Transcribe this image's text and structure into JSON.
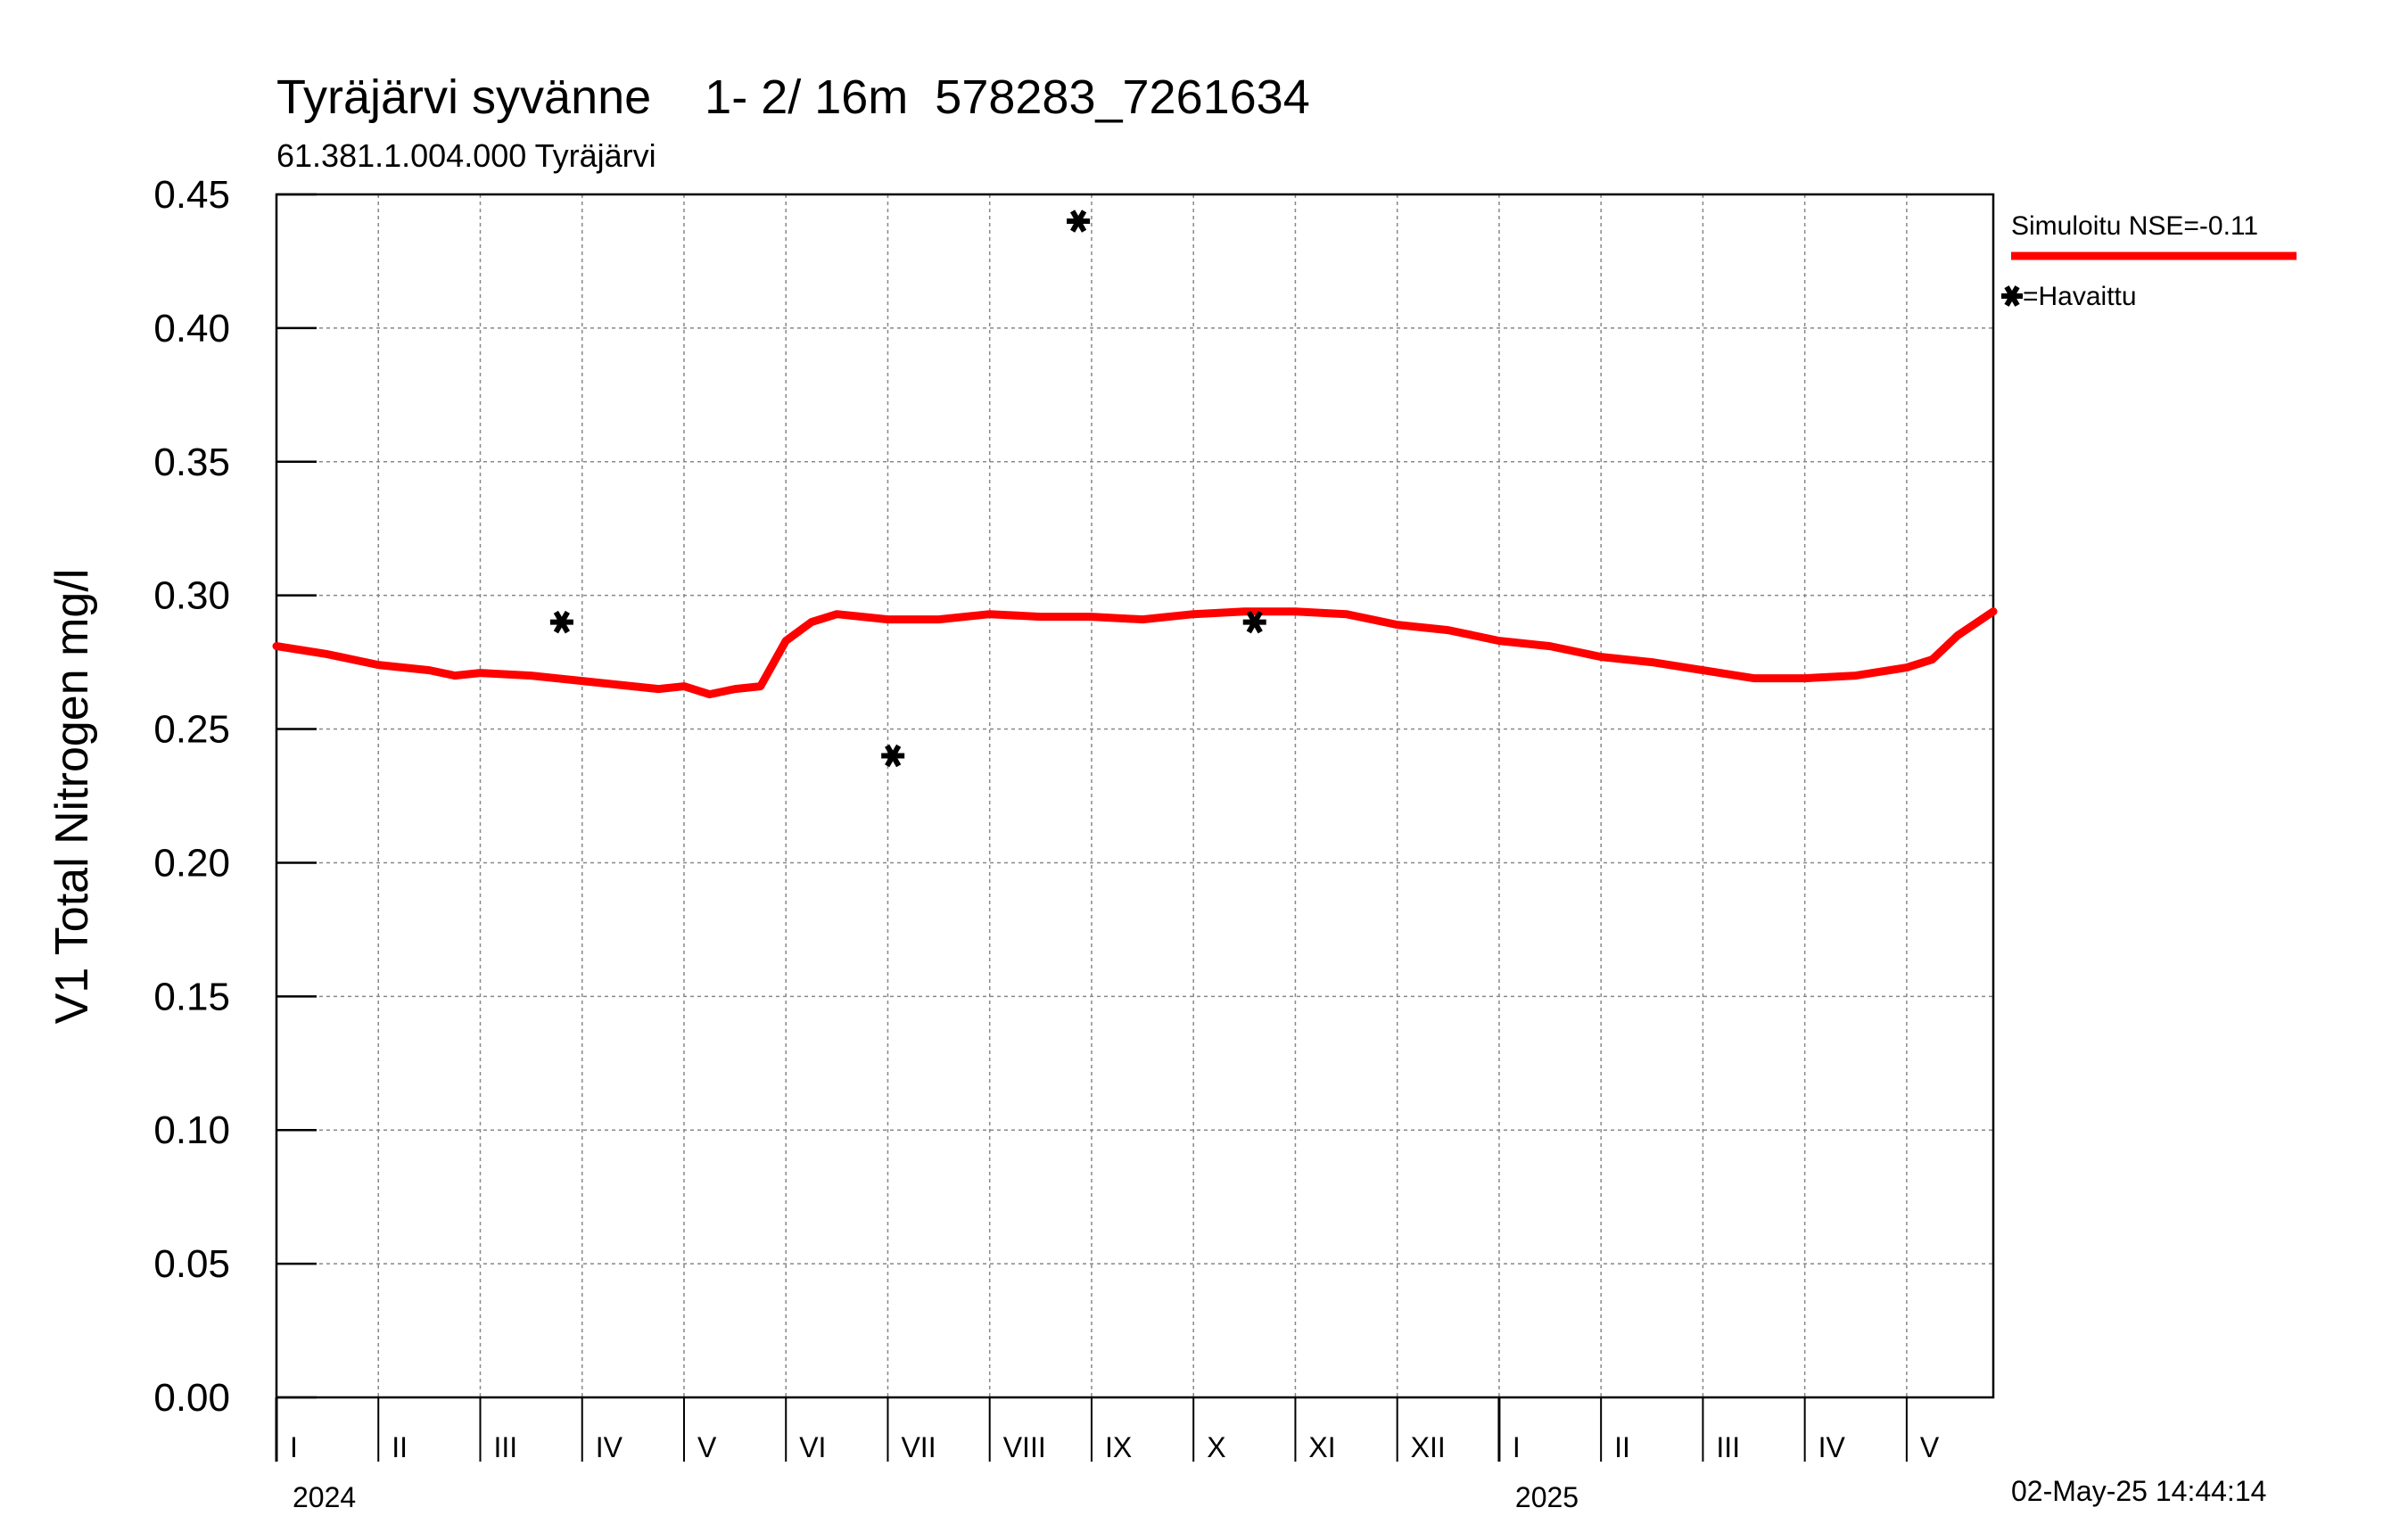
{
  "chart_data": {
    "type": "line",
    "title": "Tyräjärvi syvänne    1- 2/ 16m  578283_7261634",
    "subtitle": "61.381.1.004.000 Tyräjärvi",
    "ylabel": "V1 Total Nitrogen mg/l",
    "xlabel": "",
    "ylim": [
      0,
      0.45
    ],
    "yticks": [
      "0.00",
      "0.05",
      "0.10",
      "0.15",
      "0.20",
      "0.25",
      "0.30",
      "0.35",
      "0.40",
      "0.45"
    ],
    "ytick_values": [
      0,
      0.05,
      0.1,
      0.15,
      0.2,
      0.25,
      0.3,
      0.35,
      0.4,
      0.45
    ],
    "x_range_months": [
      0,
      16.85
    ],
    "months": [
      "I",
      "II",
      "III",
      "IV",
      "V",
      "VI",
      "VII",
      "VIII",
      "IX",
      "X",
      "XI",
      "XII",
      "I",
      "II",
      "III",
      "IV",
      "V"
    ],
    "years": [
      {
        "label": "2024",
        "month_index": 0
      },
      {
        "label": "2025",
        "month_index": 12
      }
    ],
    "grid": true,
    "legend_position": "top-right",
    "series": [
      {
        "name": "Simuloitu NSE=-0.11",
        "color": "#ff0000",
        "kind": "line",
        "x": [
          0,
          0.5,
          0.75,
          1.0,
          1.5,
          1.75,
          2.0,
          2.5,
          3.0,
          3.5,
          3.75,
          4.0,
          4.25,
          4.5,
          4.75,
          5.0,
          5.25,
          5.5,
          5.75,
          6.0,
          6.5,
          7.0,
          7.5,
          8.0,
          8.5,
          9.0,
          9.5,
          10.0,
          10.5,
          11.0,
          11.5,
          12.0,
          12.5,
          13.0,
          13.5,
          14.0,
          14.5,
          15.0,
          15.5,
          16.0,
          16.25,
          16.5,
          16.85
        ],
        "y": [
          0.281,
          0.278,
          0.276,
          0.274,
          0.272,
          0.27,
          0.271,
          0.27,
          0.268,
          0.266,
          0.265,
          0.266,
          0.263,
          0.265,
          0.266,
          0.283,
          0.29,
          0.293,
          0.292,
          0.291,
          0.291,
          0.293,
          0.292,
          0.292,
          0.291,
          0.293,
          0.294,
          0.294,
          0.293,
          0.289,
          0.287,
          0.283,
          0.281,
          0.277,
          0.275,
          0.272,
          0.269,
          0.269,
          0.27,
          0.273,
          0.276,
          0.285,
          0.294
        ]
      },
      {
        "name": "=Havaittu",
        "color": "#000000",
        "kind": "marker",
        "x": [
          2.8,
          6.05,
          7.87,
          9.6
        ],
        "y": [
          0.29,
          0.24,
          0.44,
          0.29
        ]
      }
    ]
  },
  "timestamp": "02-May-25 14:44:14"
}
